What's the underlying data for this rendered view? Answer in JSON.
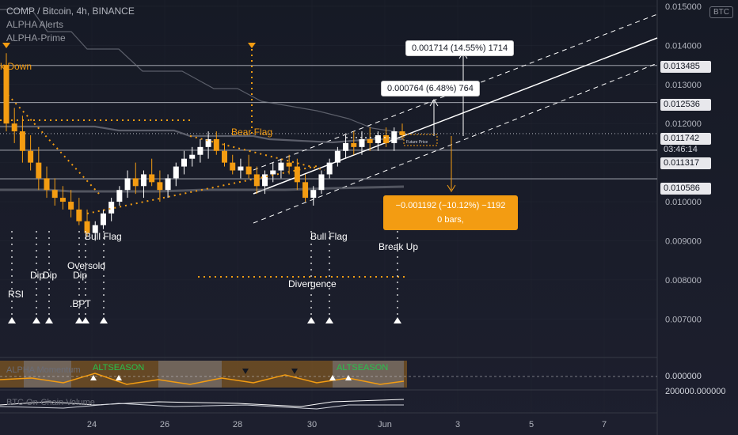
{
  "legend": {
    "symbol": "COMP / Bitcoin, 4h, BINANCE",
    "line2": "ALPHA Alerts",
    "line3": "ALPHA-Prime"
  },
  "badge": "BTC",
  "price_tags": {
    "p1": "0.013485",
    "p2": "0.012536",
    "current": "0.011742",
    "countdown": "03:46:14",
    "p3": "0.011317",
    "p4": "0.010586"
  },
  "measures": {
    "top": "0.001714 (14.55%) 1714",
    "mid": "0.000764 (6.48%) 764",
    "down_line1": "−0.001192 (−10.12%) −1192",
    "down_line2": "0 bars,"
  },
  "annotations": {
    "break_down": "k Down",
    "bear_flag": "Bear Flag",
    "bull_flag_1": "Bull Flag",
    "bull_flag_2": "Bull Flag",
    "break_up": "Break Up",
    "divergence": "Divergence",
    "oversold": "Oversold",
    "rsi": "RSI",
    "dip_1": "Dip",
    "dip_2": "Dip",
    "dip_3": "Dip",
    "bpt": ".BPT",
    "future_price": "Future Price"
  },
  "indicators": {
    "momentum_label": "ALPHA Momentum",
    "altseason_1": "ALTSEASON",
    "altseason_2": "ALTSEASON",
    "onchain_label": "BTC On-Chain Volume",
    "momentum_axis": "0.000000",
    "volume_axis": "200000.000000"
  },
  "colors": {
    "background": "#131722",
    "bull": "#ffffff",
    "bear": "#f39c12",
    "annotation": "#f39c12",
    "grid": "#2a2e39",
    "altseason": "#27c24c"
  },
  "chart_data": {
    "type": "candlestick",
    "title": "COMP / Bitcoin, 4h, BINANCE",
    "y_axis_labels": [
      "0.015000",
      "0.014000",
      "0.013000",
      "0.012000",
      "0.011000",
      "0.010000",
      "0.009000",
      "0.008000",
      "0.007000"
    ],
    "ylim": [
      0.0065,
      0.0151
    ],
    "x_axis_labels": [
      "24",
      "26",
      "28",
      "30",
      "Jun",
      "3",
      "5",
      "7"
    ],
    "current_price": 0.011742,
    "levels": [
      0.013485,
      0.012536,
      0.011317,
      0.010586
    ],
    "candles_ohlc": [
      [
        0.0135,
        0.0138,
        0.0118,
        0.012
      ],
      [
        0.012,
        0.0124,
        0.0115,
        0.0118
      ],
      [
        0.0118,
        0.0122,
        0.011,
        0.0113
      ],
      [
        0.0113,
        0.0117,
        0.0108,
        0.011
      ],
      [
        0.011,
        0.0114,
        0.0103,
        0.0106
      ],
      [
        0.0106,
        0.0109,
        0.0101,
        0.0103
      ],
      [
        0.0103,
        0.0106,
        0.0099,
        0.0101
      ],
      [
        0.0101,
        0.0104,
        0.0098,
        0.01
      ],
      [
        0.01,
        0.0103,
        0.0096,
        0.0098
      ],
      [
        0.0098,
        0.0101,
        0.0094,
        0.0095
      ],
      [
        0.0095,
        0.0098,
        0.0091,
        0.0092
      ],
      [
        0.0092,
        0.0095,
        0.009,
        0.0094
      ],
      [
        0.0094,
        0.0098,
        0.0093,
        0.0097
      ],
      [
        0.0097,
        0.0101,
        0.0095,
        0.01
      ],
      [
        0.01,
        0.0104,
        0.0099,
        0.0103
      ],
      [
        0.0103,
        0.0108,
        0.0101,
        0.0106
      ],
      [
        0.0106,
        0.011,
        0.0102,
        0.0104
      ],
      [
        0.0104,
        0.0108,
        0.0101,
        0.0107
      ],
      [
        0.0107,
        0.0111,
        0.0104,
        0.0105
      ],
      [
        0.0105,
        0.0108,
        0.01,
        0.0103
      ],
      [
        0.0103,
        0.0107,
        0.0101,
        0.0106
      ],
      [
        0.0106,
        0.011,
        0.0104,
        0.0109
      ],
      [
        0.0109,
        0.0113,
        0.0107,
        0.0111
      ],
      [
        0.0111,
        0.0114,
        0.0109,
        0.0112
      ],
      [
        0.0112,
        0.0116,
        0.011,
        0.0114
      ],
      [
        0.0114,
        0.0118,
        0.0111,
        0.0116
      ],
      [
        0.0116,
        0.0118,
        0.0112,
        0.0113
      ],
      [
        0.0113,
        0.0115,
        0.0109,
        0.011
      ],
      [
        0.011,
        0.0112,
        0.0107,
        0.0108
      ],
      [
        0.0108,
        0.0111,
        0.0106,
        0.0109
      ],
      [
        0.0109,
        0.0112,
        0.0106,
        0.0107
      ],
      [
        0.0107,
        0.0109,
        0.0102,
        0.0104
      ],
      [
        0.0104,
        0.0108,
        0.0102,
        0.0107
      ],
      [
        0.0107,
        0.011,
        0.0105,
        0.0108
      ],
      [
        0.0108,
        0.0111,
        0.0106,
        0.011
      ],
      [
        0.011,
        0.0112,
        0.0107,
        0.0109
      ],
      [
        0.0109,
        0.0111,
        0.0103,
        0.0105
      ],
      [
        0.0105,
        0.0107,
        0.01,
        0.0101
      ],
      [
        0.0101,
        0.0104,
        0.0099,
        0.0103
      ],
      [
        0.0103,
        0.0108,
        0.0102,
        0.0107
      ],
      [
        0.0107,
        0.0111,
        0.0106,
        0.011
      ],
      [
        0.011,
        0.0114,
        0.0109,
        0.0113
      ],
      [
        0.0113,
        0.0117,
        0.0111,
        0.0115
      ],
      [
        0.0115,
        0.0118,
        0.0112,
        0.0114
      ],
      [
        0.0114,
        0.0118,
        0.0112,
        0.0116
      ],
      [
        0.0116,
        0.0119,
        0.0113,
        0.0115
      ],
      [
        0.0115,
        0.0118,
        0.0113,
        0.0117
      ],
      [
        0.0117,
        0.0119,
        0.0114,
        0.0115
      ],
      [
        0.0115,
        0.0119,
        0.0113,
        0.0118
      ],
      [
        0.0118,
        0.012,
        0.0116,
        0.0117
      ]
    ],
    "grid": true
  }
}
